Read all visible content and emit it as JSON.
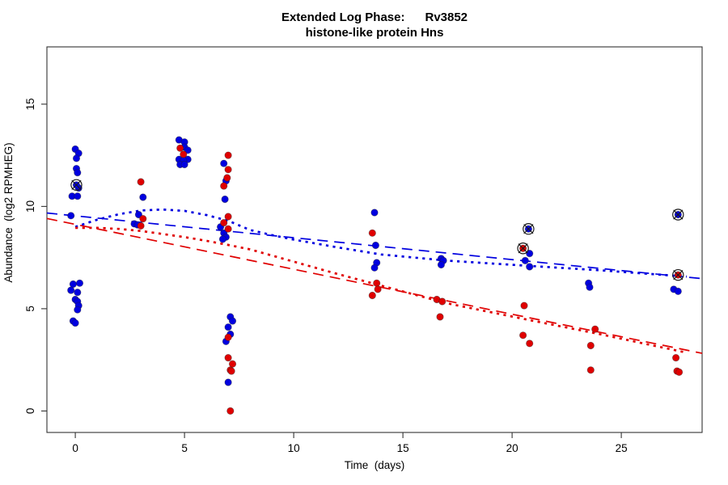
{
  "chart_data": {
    "type": "scatter",
    "title_line1": "Extended Log Phase:      Rv3852",
    "title_line2": "histone-like protein Hns",
    "xlabel": "Time  (days)",
    "ylabel": "Abundance  (log2 RPMHEG)",
    "xlim": [
      -1.3,
      28.7
    ],
    "ylim": [
      -1.05,
      17.8
    ],
    "x_ticks": [
      0,
      5,
      10,
      15,
      20,
      25
    ],
    "y_ticks": [
      0,
      5,
      10,
      15
    ],
    "grid": false,
    "legend": "none",
    "colors": {
      "blue": "#0000E0",
      "red": "#E00000",
      "axis": "#333333",
      "outlier_mark": "#1a1a1a",
      "background": "#ffffff"
    },
    "series": [
      {
        "name": "blue-points",
        "color_key": "blue",
        "points": [
          [
            0,
            12.8
          ],
          [
            0.15,
            12.6
          ],
          [
            0.05,
            12.35
          ],
          [
            0.05,
            11.85
          ],
          [
            0.1,
            11.65
          ],
          [
            0.15,
            10.9
          ],
          [
            -0.15,
            10.5
          ],
          [
            0.1,
            10.5
          ],
          [
            -0.2,
            9.55
          ],
          [
            -0.1,
            6.2
          ],
          [
            0.2,
            6.25
          ],
          [
            -0.2,
            5.9
          ],
          [
            0.1,
            5.8
          ],
          [
            0,
            5.45
          ],
          [
            0.1,
            5.35
          ],
          [
            0.15,
            5.15
          ],
          [
            0.1,
            4.95
          ],
          [
            -0.1,
            4.4
          ],
          [
            0,
            4.3
          ],
          [
            3.1,
            10.45
          ],
          [
            2.9,
            9.6
          ],
          [
            2.7,
            9.15
          ],
          [
            2.85,
            9.1
          ],
          [
            4.75,
            13.25
          ],
          [
            5,
            13.15
          ],
          [
            5,
            12.9
          ],
          [
            5.15,
            12.75
          ],
          [
            4.75,
            12.3
          ],
          [
            5.15,
            12.3
          ],
          [
            4.95,
            12.25
          ],
          [
            4.8,
            12.05
          ],
          [
            5,
            12.05
          ],
          [
            6.8,
            12.1
          ],
          [
            6.9,
            11.25
          ],
          [
            6.85,
            10.35
          ],
          [
            6.65,
            9.0
          ],
          [
            6.8,
            8.7
          ],
          [
            6.9,
            8.5
          ],
          [
            6.75,
            8.4
          ],
          [
            7.1,
            4.6
          ],
          [
            7.2,
            4.4
          ],
          [
            7.0,
            4.1
          ],
          [
            7.1,
            3.75
          ],
          [
            6.9,
            3.4
          ],
          [
            7.0,
            1.4
          ],
          [
            13.7,
            9.7
          ],
          [
            13.75,
            8.1
          ],
          [
            13.8,
            7.25
          ],
          [
            13.7,
            7.0
          ],
          [
            16.75,
            7.45
          ],
          [
            16.85,
            7.35
          ],
          [
            16.75,
            7.15
          ],
          [
            20.8,
            7.7
          ],
          [
            20.6,
            7.35
          ],
          [
            20.8,
            7.05
          ],
          [
            23.5,
            6.25
          ],
          [
            23.55,
            6.05
          ],
          [
            27.4,
            5.95
          ],
          [
            27.6,
            5.85
          ]
        ]
      },
      {
        "name": "red-points",
        "color_key": "red",
        "points": [
          [
            3,
            11.2
          ],
          [
            3.1,
            9.4
          ],
          [
            3,
            9.05
          ],
          [
            4.8,
            12.85
          ],
          [
            4.95,
            12.55
          ],
          [
            7,
            12.5
          ],
          [
            7,
            11.8
          ],
          [
            6.95,
            11.4
          ],
          [
            6.8,
            11.0
          ],
          [
            7,
            9.5
          ],
          [
            6.8,
            9.2
          ],
          [
            7,
            8.9
          ],
          [
            7.0,
            3.6
          ],
          [
            7.0,
            2.6
          ],
          [
            7.2,
            2.3
          ],
          [
            7.1,
            2.0
          ],
          [
            7.15,
            1.95
          ],
          [
            7.1,
            0.0
          ],
          [
            13.6,
            8.7
          ],
          [
            13.8,
            6.25
          ],
          [
            13.85,
            5.95
          ],
          [
            13.6,
            5.65
          ],
          [
            16.55,
            5.45
          ],
          [
            16.8,
            5.35
          ],
          [
            16.7,
            4.6
          ],
          [
            20.55,
            5.15
          ],
          [
            20.5,
            3.7
          ],
          [
            20.8,
            3.3
          ],
          [
            23.8,
            4.0
          ],
          [
            23.6,
            3.2
          ],
          [
            23.6,
            2.0
          ],
          [
            27.5,
            2.6
          ],
          [
            27.55,
            1.95
          ],
          [
            27.65,
            1.9
          ]
        ]
      }
    ],
    "outliers_circled": [
      {
        "x": 0.05,
        "y": 11.05,
        "color_key": "blue"
      },
      {
        "x": 20.75,
        "y": 8.9,
        "color_key": "blue"
      },
      {
        "x": 20.5,
        "y": 7.95,
        "color_key": "red"
      },
      {
        "x": 27.6,
        "y": 9.6,
        "color_key": "blue"
      },
      {
        "x": 27.6,
        "y": 6.65,
        "color_key": "red"
      }
    ],
    "trend_lines": [
      {
        "name": "blue-linear-fit",
        "color_key": "blue",
        "style": "dashed",
        "points": [
          [
            -1.3,
            9.68
          ],
          [
            28.7,
            6.47
          ]
        ]
      },
      {
        "name": "red-linear-fit",
        "color_key": "red",
        "style": "dashed",
        "points": [
          [
            -1.3,
            9.41
          ],
          [
            28.7,
            2.82
          ]
        ]
      },
      {
        "name": "blue-smooth-fit",
        "color_key": "blue",
        "style": "dotted",
        "points": [
          [
            0,
            9.0
          ],
          [
            1,
            9.35
          ],
          [
            2,
            9.62
          ],
          [
            3,
            9.8
          ],
          [
            4,
            9.85
          ],
          [
            5,
            9.78
          ],
          [
            6,
            9.58
          ],
          [
            7,
            9.3
          ],
          [
            8,
            8.85
          ],
          [
            9,
            8.6
          ],
          [
            10,
            8.38
          ],
          [
            12,
            8.0
          ],
          [
            14,
            7.65
          ],
          [
            17,
            7.35
          ],
          [
            21,
            7.08
          ],
          [
            24,
            6.88
          ],
          [
            28,
            6.57
          ]
        ]
      },
      {
        "name": "red-smooth-fit",
        "color_key": "red",
        "style": "dotted",
        "points": [
          [
            0,
            8.95
          ],
          [
            1,
            8.95
          ],
          [
            2,
            8.9
          ],
          [
            3,
            8.8
          ],
          [
            4,
            8.65
          ],
          [
            5,
            8.5
          ],
          [
            6,
            8.32
          ],
          [
            7,
            8.12
          ],
          [
            8,
            7.9
          ],
          [
            10,
            7.3
          ],
          [
            12,
            6.7
          ],
          [
            14,
            6.13
          ],
          [
            17,
            5.27
          ],
          [
            21,
            4.4
          ],
          [
            24,
            3.76
          ],
          [
            28,
            2.85
          ]
        ]
      }
    ]
  }
}
